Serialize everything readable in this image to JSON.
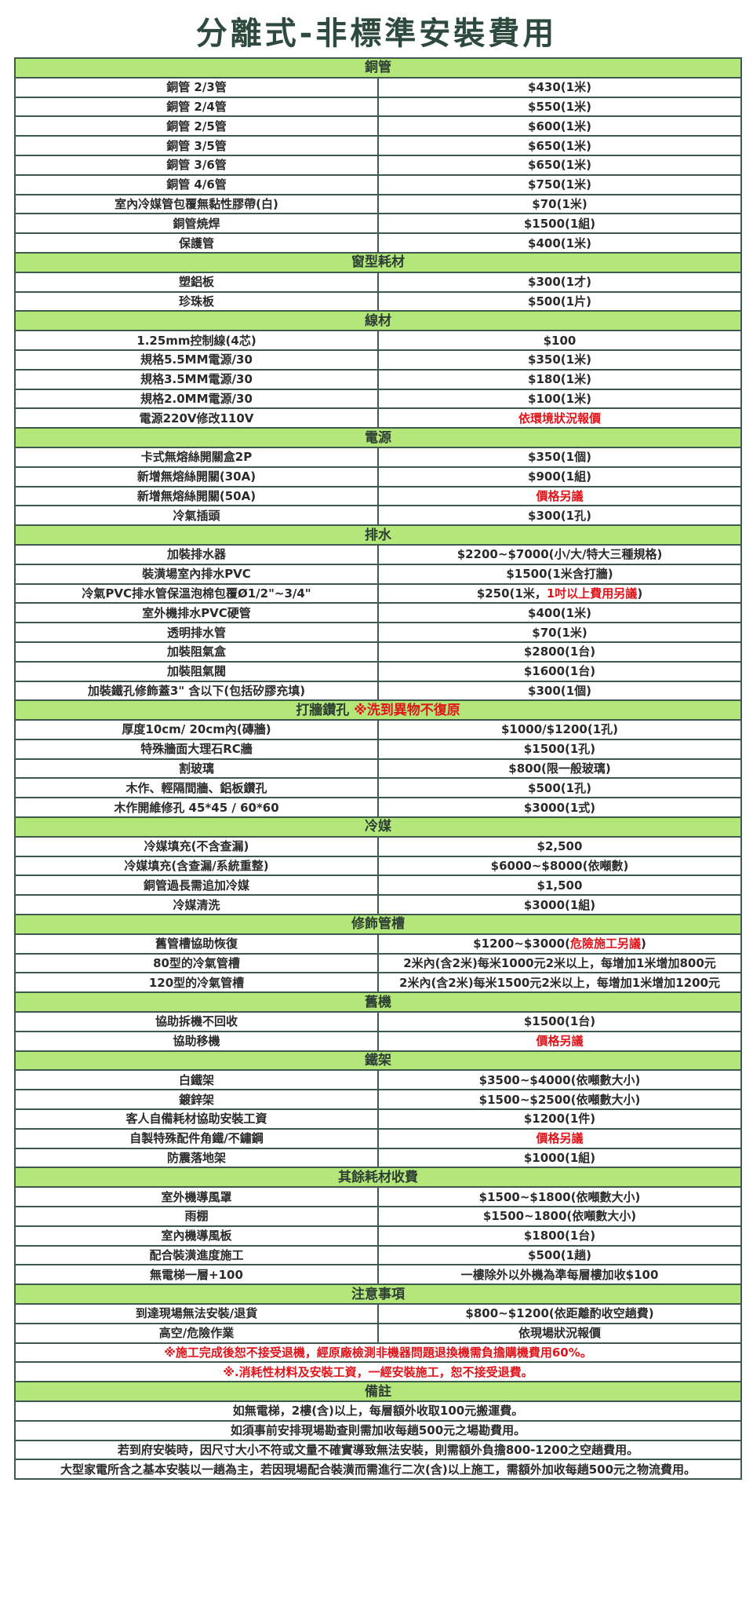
{
  "title": "分離式-非標準安裝費用",
  "colors": {
    "header_bg": "#b3e77a",
    "border": "#3d5a4c",
    "title": "#2e4a3e",
    "highlight_red": "#e0141a"
  },
  "sections": [
    {
      "header": [
        {
          "text": "銅管"
        }
      ],
      "rows": [
        {
          "label": "銅管 2/3管",
          "value": [
            {
              "text": "$430(1米)"
            }
          ]
        },
        {
          "label": "銅管 2/4管",
          "value": [
            {
              "text": "$550(1米)"
            }
          ]
        },
        {
          "label": "銅管 2/5管",
          "value": [
            {
              "text": "$600(1米)"
            }
          ]
        },
        {
          "label": "銅管 3/5管",
          "value": [
            {
              "text": "$650(1米)"
            }
          ]
        },
        {
          "label": "銅管 3/6管",
          "value": [
            {
              "text": "$650(1米)"
            }
          ]
        },
        {
          "label": "銅管 4/6管",
          "value": [
            {
              "text": "$750(1米)"
            }
          ]
        },
        {
          "label": "室內冷媒管包覆無黏性膠帶(白)",
          "value": [
            {
              "text": "$70(1米)"
            }
          ]
        },
        {
          "label": "銅管焼焊",
          "value": [
            {
              "text": "$1500(1組)"
            }
          ]
        },
        {
          "label": "保護管",
          "value": [
            {
              "text": "$400(1米)"
            }
          ]
        }
      ]
    },
    {
      "header": [
        {
          "text": "窗型耗材"
        }
      ],
      "rows": [
        {
          "label": "塑鋁板",
          "value": [
            {
              "text": "$300(1才)"
            }
          ]
        },
        {
          "label": "珍珠板",
          "value": [
            {
              "text": "$500(1片)"
            }
          ]
        }
      ]
    },
    {
      "header": [
        {
          "text": "線材"
        }
      ],
      "rows": [
        {
          "label": "1.25mm控制線(4芯)",
          "value": [
            {
              "text": "$100"
            }
          ]
        },
        {
          "label": "規格5.5MM電源/30",
          "value": [
            {
              "text": "$350(1米)"
            }
          ]
        },
        {
          "label": "規格3.5MM電源/30",
          "value": [
            {
              "text": "$180(1米)"
            }
          ]
        },
        {
          "label": "規格2.0MM電源/30",
          "value": [
            {
              "text": "$100(1米)"
            }
          ]
        },
        {
          "label": "電源220V修改110V",
          "value": [
            {
              "text": "依環境狀況報價",
              "red": true
            }
          ]
        }
      ]
    },
    {
      "header": [
        {
          "text": "電源"
        }
      ],
      "rows": [
        {
          "label": "卡式無熔絲開關盒2P",
          "value": [
            {
              "text": "$350(1個)"
            }
          ]
        },
        {
          "label": "新增無熔絲開關(30A)",
          "value": [
            {
              "text": "$900(1組)"
            }
          ]
        },
        {
          "label": "新增無熔絲開關(50A)",
          "value": [
            {
              "text": "價格另議",
              "red": true
            }
          ]
        },
        {
          "label": "冷氣插頭",
          "value": [
            {
              "text": "$300(1孔)"
            }
          ]
        }
      ]
    },
    {
      "header": [
        {
          "text": "排水"
        }
      ],
      "rows": [
        {
          "label": "加裝排水器",
          "value": [
            {
              "text": "$2200~$7000(小/大/特大三種規格)"
            }
          ]
        },
        {
          "label": "裝潢場室內排水PVC",
          "value": [
            {
              "text": "$1500(1米含打牆)"
            }
          ]
        },
        {
          "label": "冷氣PVC排水管保溫泡棉包覆Ø1/2\"~3/4\"",
          "value": [
            {
              "text": "$250(1米，"
            },
            {
              "text": "1吋以上費用另議",
              "red": true
            },
            {
              "text": ")"
            }
          ]
        },
        {
          "label": "室外機排水PVC硬管",
          "value": [
            {
              "text": "$400(1米)"
            }
          ]
        },
        {
          "label": "透明排水管",
          "value": [
            {
              "text": "$70(1米)"
            }
          ]
        },
        {
          "label": "加裝阻氣盒",
          "value": [
            {
              "text": "$2800(1台)"
            }
          ]
        },
        {
          "label": "加裝阻氣閥",
          "value": [
            {
              "text": "$1600(1台)"
            }
          ]
        },
        {
          "label": "加裝鐵孔修飾蓋3\" 含以下(包括矽膠充填)",
          "value": [
            {
              "text": "$300(1個)"
            }
          ]
        }
      ]
    },
    {
      "header": [
        {
          "text": "打牆鑽孔 "
        },
        {
          "text": "※洗到異物不復原",
          "red": true
        }
      ],
      "rows": [
        {
          "label": "厚度10cm/ 20cm內(磚牆)",
          "value": [
            {
              "text": "$1000/$1200(1孔)"
            }
          ]
        },
        {
          "label": "特殊牆面大理石RC牆",
          "value": [
            {
              "text": "$1500(1孔)"
            }
          ]
        },
        {
          "label": "割玻璃",
          "value": [
            {
              "text": "$800(限一般玻璃)"
            }
          ]
        },
        {
          "label": "木作、輕隔間牆、鋁板鑽孔",
          "value": [
            {
              "text": "$500(1孔)"
            }
          ]
        },
        {
          "label": "木作開維修孔 45*45 / 60*60",
          "value": [
            {
              "text": "$3000(1式)"
            }
          ]
        }
      ]
    },
    {
      "header": [
        {
          "text": "冷媒"
        }
      ],
      "rows": [
        {
          "label": "冷媒填充(不含查漏)",
          "value": [
            {
              "text": "$2,500"
            }
          ]
        },
        {
          "label": "冷媒填充(含查漏/系統重整)",
          "value": [
            {
              "text": "$6000~$8000(依噸數)"
            }
          ]
        },
        {
          "label": "銅管過長需追加冷媒",
          "value": [
            {
              "text": "$1,500"
            }
          ]
        },
        {
          "label": "冷媒清洗",
          "value": [
            {
              "text": "$3000(1組)"
            }
          ]
        }
      ]
    },
    {
      "header": [
        {
          "text": "修飾管槽"
        }
      ],
      "rows": [
        {
          "label": "舊管槽協助恢復",
          "value": [
            {
              "text": "$1200~$3000("
            },
            {
              "text": "危險施工另議",
              "red": true
            },
            {
              "text": ")"
            }
          ]
        },
        {
          "label": "80型的冷氣管槽",
          "value": [
            {
              "text": "2米內(含2米)每米1000元2米以上，每增加1米增加800元"
            }
          ]
        },
        {
          "label": "120型的冷氣管槽",
          "value": [
            {
              "text": "2米內(含2米)每米1500元2米以上，每增加1米增加1200元"
            }
          ]
        }
      ]
    },
    {
      "header": [
        {
          "text": "舊機"
        }
      ],
      "rows": [
        {
          "label": "協助拆機不回收",
          "value": [
            {
              "text": "$1500(1台)"
            }
          ]
        },
        {
          "label": "協助移機",
          "value": [
            {
              "text": "價格另議",
              "red": true
            }
          ]
        }
      ]
    },
    {
      "header": [
        {
          "text": "鐵架"
        }
      ],
      "rows": [
        {
          "label": "白鐵架",
          "value": [
            {
              "text": "$3500~$4000(依噸數大小)"
            }
          ]
        },
        {
          "label": "鍍鋅架",
          "value": [
            {
              "text": "$1500~$2500(依噸數大小)"
            }
          ]
        },
        {
          "label": "客人自備耗材協助安裝工資",
          "value": [
            {
              "text": "$1200(1件)"
            }
          ]
        },
        {
          "label": "自製特殊配件角鐵/不鏽鋼",
          "value": [
            {
              "text": "價格另議",
              "red": true
            }
          ]
        },
        {
          "label": "防震落地架",
          "value": [
            {
              "text": "$1000(1組)"
            }
          ]
        }
      ]
    },
    {
      "header": [
        {
          "text": "其餘耗材收費"
        }
      ],
      "rows": [
        {
          "label": "室外機導風罩",
          "value": [
            {
              "text": "$1500~$1800(依噸數大小)"
            }
          ]
        },
        {
          "label": "雨棚",
          "value": [
            {
              "text": "$1500~1800(依噸數大小)"
            }
          ]
        },
        {
          "label": "室內機導風板",
          "value": [
            {
              "text": "$1800(1台)"
            }
          ]
        },
        {
          "label": "配合裝潢進度施工",
          "value": [
            {
              "text": "$500(1趟)"
            }
          ]
        },
        {
          "label": "無電梯一層+100",
          "value": [
            {
              "text": "一樓除外以外機為準每層樓加收$100"
            }
          ]
        }
      ]
    },
    {
      "header": [
        {
          "text": "注意事項"
        }
      ],
      "rows": [
        {
          "label": "到達現場無法安裝/退貨",
          "value": [
            {
              "text": "$800~$1200(依距離酌收空趟費)"
            }
          ]
        },
        {
          "label": "高空/危險作業",
          "value": [
            {
              "text": "依現場狀況報價"
            }
          ]
        },
        {
          "full": "※施工完成後恕不接受退機，經原廠檢測非機器問題退換機需負擔購機費用60%。",
          "red": true
        },
        {
          "full": "※.消耗性材料及安裝工資，一經安裝施工，恕不接受退費。",
          "red": true
        }
      ]
    },
    {
      "header": [
        {
          "text": "備註"
        }
      ],
      "rows": [
        {
          "full": "如無電梯，2樓(含)以上，每層額外收取100元搬運費。"
        },
        {
          "full": "如須事前安排現場勘查則需加收每趟500元之場勘費用。"
        },
        {
          "full": "若到府安裝時，因尺寸大小不符或文量不確實導致無法安裝，則需額外負擔800-1200之空趟費用。"
        },
        {
          "full": "大型家電所含之基本安裝以一趟為主，若因現場配合裝潢而需進行二次(含)以上施工，需額外加收每趟500元之物流費用。"
        }
      ]
    }
  ]
}
